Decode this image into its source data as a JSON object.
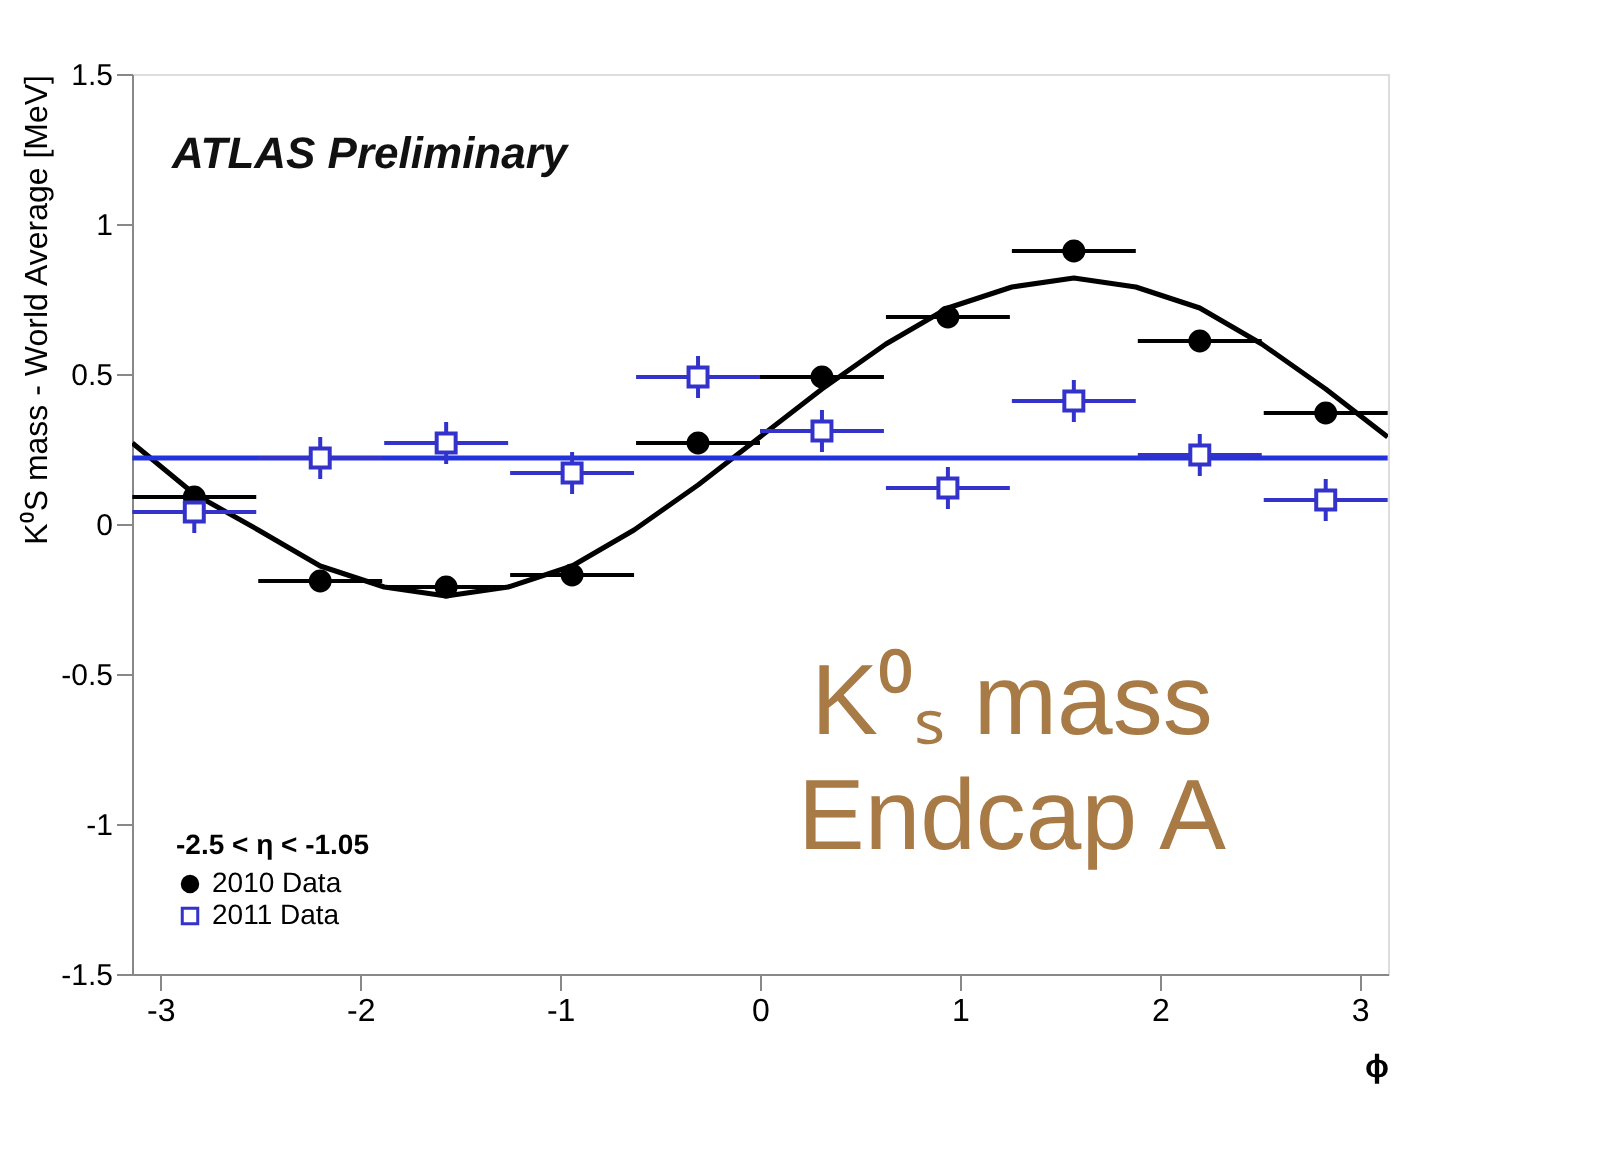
{
  "chart_data": {
    "type": "scatter",
    "xlabel": "ϕ",
    "ylabel": "K⁰S mass - World Average [MeV]",
    "legend_title": "-2.5 < η < -1.05",
    "annotations": [
      "ATLAS Preliminary",
      "K⁰ₛ mass\nEndcap A"
    ],
    "x": [
      -2.83,
      -2.2,
      -1.57,
      -0.94,
      -0.31,
      0.31,
      0.94,
      1.57,
      2.2,
      2.83
    ],
    "series": [
      {
        "name": "2010 Data",
        "color": "#000000",
        "marker": "circle",
        "values": [
          0.09,
          -0.19,
          -0.21,
          -0.17,
          0.27,
          0.49,
          0.69,
          0.91,
          0.61,
          0.37
        ],
        "errors": [
          0.01,
          0.01,
          0.01,
          0.01,
          0.01,
          0.01,
          0.01,
          0.01,
          0.01,
          0.01
        ],
        "xerrors": [
          0.31,
          0.31,
          0.31,
          0.31,
          0.31,
          0.31,
          0.31,
          0.31,
          0.31,
          0.31
        ]
      },
      {
        "name": "2011 Data",
        "color": "#3333cc",
        "marker": "square",
        "values": [
          0.04,
          0.22,
          0.27,
          0.17,
          0.49,
          0.31,
          0.12,
          0.41,
          0.23,
          0.08
        ],
        "errors": [
          0.07,
          0.07,
          0.07,
          0.07,
          0.07,
          0.07,
          0.07,
          0.07,
          0.07,
          0.07
        ],
        "xerrors": [
          0.31,
          0.31,
          0.31,
          0.31,
          0.31,
          0.31,
          0.31,
          0.31,
          0.31,
          0.31
        ]
      },
      {
        "type": "line",
        "color": "#000000",
        "x": [
          -3.14,
          -2.83,
          -2.51,
          -2.2,
          -1.88,
          -1.57,
          -1.26,
          -0.94,
          -0.63,
          -0.31,
          0,
          0.31,
          0.63,
          0.94,
          1.26,
          1.57,
          1.88,
          2.2,
          2.51,
          2.83,
          3.14
        ],
        "values": [
          0.27,
          0.1,
          -0.02,
          -0.14,
          -0.21,
          -0.24,
          -0.21,
          -0.14,
          -0.02,
          0.13,
          0.29,
          0.45,
          0.6,
          0.72,
          0.79,
          0.82,
          0.79,
          0.72,
          0.6,
          0.45,
          0.29
        ]
      },
      {
        "type": "line",
        "color": "#2233dd",
        "x": [
          -3.14,
          3.14
        ],
        "values": [
          0.22,
          0.22
        ]
      }
    ],
    "xlim": [
      -3.1416,
      3.1416
    ],
    "ylim": [
      -1.5,
      1.5
    ],
    "xticks": [
      -3,
      -2,
      -1,
      0,
      1,
      2,
      3
    ],
    "yticks": [
      -1.5,
      -1,
      -0.5,
      0,
      0.5,
      1,
      1.5
    ],
    "legend": "bottom left",
    "grid": false
  }
}
